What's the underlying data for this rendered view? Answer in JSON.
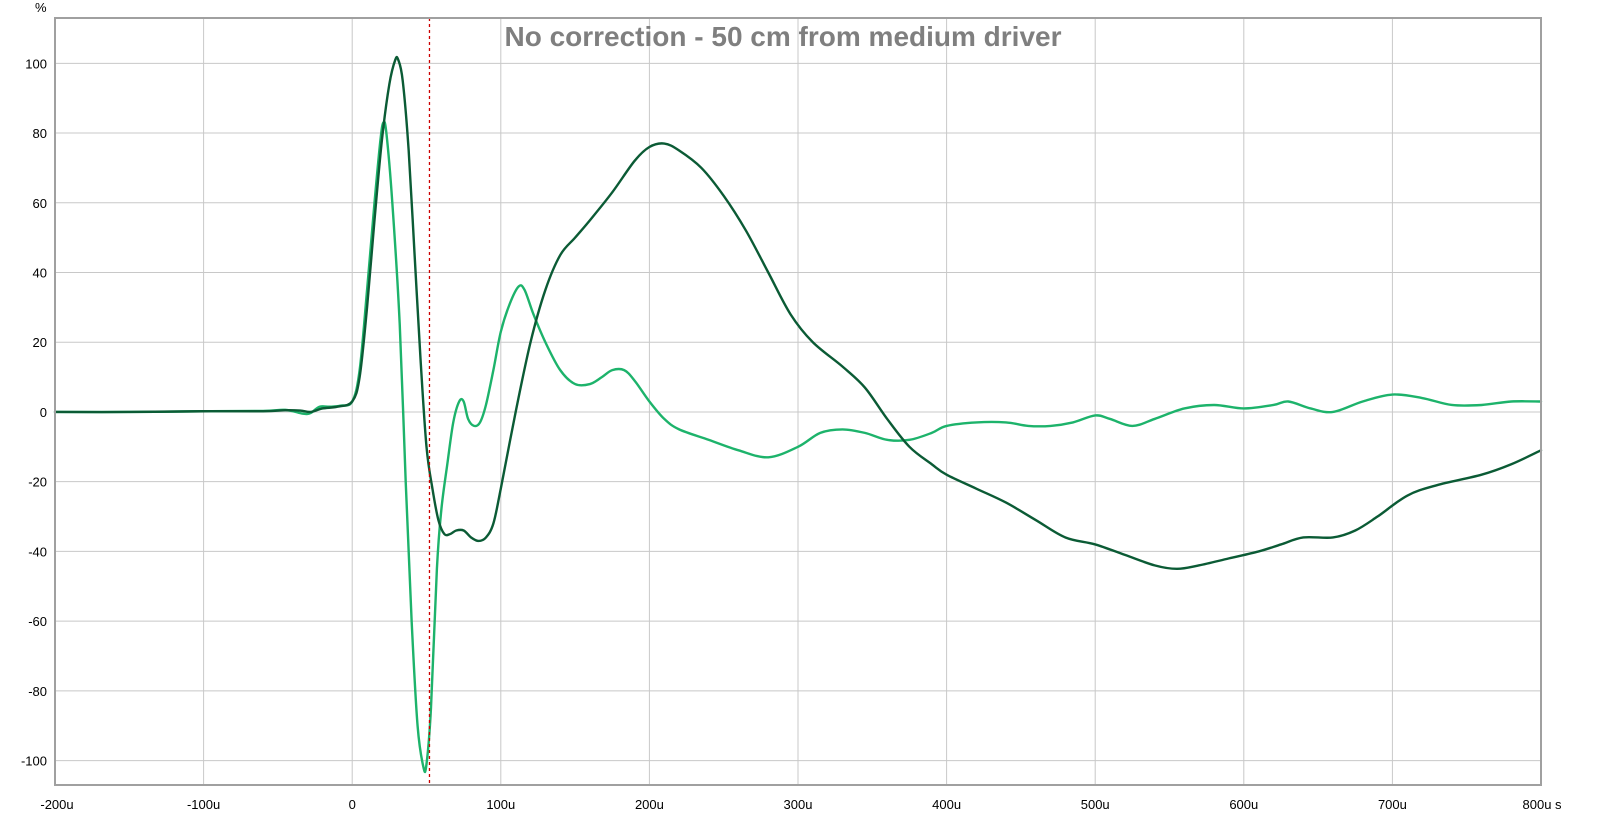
{
  "chart_data": {
    "type": "line",
    "title": "No correction - 50 cm from medium driver",
    "ylabel": "%",
    "xlabel": "",
    "x_unit_label": "s",
    "xlim": [
      -200,
      800
    ],
    "ylim": [
      -107,
      113
    ],
    "x_ticks": [
      -200,
      -100,
      0,
      100,
      200,
      300,
      400,
      500,
      600,
      700,
      800
    ],
    "x_tick_labels": [
      "-200u",
      "-100u",
      "0",
      "100u",
      "200u",
      "300u",
      "400u",
      "500u",
      "600u",
      "700u",
      "800u"
    ],
    "y_ticks": [
      100,
      80,
      60,
      40,
      20,
      0,
      -20,
      -40,
      -60,
      -80,
      -100
    ],
    "y_tick_labels": [
      "100",
      "80",
      "60",
      "40",
      "20",
      "0",
      "-20",
      "-40",
      "-60",
      "-80",
      "-100"
    ],
    "grid": true,
    "cursor_x": 52,
    "cursor_color": "#cc0000",
    "grid_color": "#c8c8c8",
    "frame_color": "#a0a0a0",
    "series": [
      {
        "color": "#1db36b",
        "points": [
          [
            -200,
            0
          ],
          [
            -150,
            0
          ],
          [
            -100,
            0.2
          ],
          [
            -60,
            0.3
          ],
          [
            -45,
            0.6
          ],
          [
            -33,
            -0.5
          ],
          [
            -28,
            -0.3
          ],
          [
            -22,
            1.5
          ],
          [
            -15,
            1.5
          ],
          [
            -8,
            1.8
          ],
          [
            0,
            3
          ],
          [
            5,
            12
          ],
          [
            10,
            35
          ],
          [
            15,
            60
          ],
          [
            19,
            78
          ],
          [
            21,
            83
          ],
          [
            23,
            80
          ],
          [
            27,
            60
          ],
          [
            32,
            25
          ],
          [
            36,
            -20
          ],
          [
            40,
            -60
          ],
          [
            44,
            -90
          ],
          [
            48,
            -102
          ],
          [
            50,
            -101
          ],
          [
            53,
            -85
          ],
          [
            57,
            -45
          ],
          [
            60,
            -28
          ],
          [
            64,
            -15
          ],
          [
            68,
            -3
          ],
          [
            72,
            3
          ],
          [
            75,
            3
          ],
          [
            78,
            -2
          ],
          [
            82,
            -4
          ],
          [
            86,
            -3
          ],
          [
            90,
            2
          ],
          [
            95,
            12
          ],
          [
            100,
            23
          ],
          [
            106,
            31
          ],
          [
            112,
            36
          ],
          [
            116,
            35
          ],
          [
            122,
            28
          ],
          [
            130,
            20
          ],
          [
            140,
            12
          ],
          [
            150,
            8
          ],
          [
            160,
            8
          ],
          [
            168,
            10
          ],
          [
            175,
            12
          ],
          [
            183,
            12
          ],
          [
            190,
            9
          ],
          [
            200,
            3
          ],
          [
            210,
            -2
          ],
          [
            220,
            -5
          ],
          [
            240,
            -8
          ],
          [
            260,
            -11
          ],
          [
            280,
            -13
          ],
          [
            300,
            -10
          ],
          [
            315,
            -6
          ],
          [
            330,
            -5
          ],
          [
            345,
            -6
          ],
          [
            360,
            -8
          ],
          [
            375,
            -8
          ],
          [
            390,
            -6
          ],
          [
            400,
            -4
          ],
          [
            420,
            -3
          ],
          [
            440,
            -3
          ],
          [
            455,
            -4
          ],
          [
            470,
            -4
          ],
          [
            485,
            -3
          ],
          [
            500,
            -1
          ],
          [
            510,
            -2
          ],
          [
            525,
            -4
          ],
          [
            540,
            -2
          ],
          [
            560,
            1
          ],
          [
            580,
            2
          ],
          [
            600,
            1
          ],
          [
            620,
            2
          ],
          [
            630,
            3
          ],
          [
            645,
            1
          ],
          [
            660,
            0
          ],
          [
            680,
            3
          ],
          [
            700,
            5
          ],
          [
            720,
            4
          ],
          [
            740,
            2
          ],
          [
            760,
            2
          ],
          [
            780,
            3
          ],
          [
            800,
            3
          ]
        ]
      },
      {
        "color": "#0b5b35",
        "points": [
          [
            -200,
            0
          ],
          [
            -150,
            0
          ],
          [
            -100,
            0.2
          ],
          [
            -60,
            0.2
          ],
          [
            -45,
            0.5
          ],
          [
            -35,
            0.4
          ],
          [
            -28,
            0
          ],
          [
            -20,
            1
          ],
          [
            -10,
            1.5
          ],
          [
            0,
            3
          ],
          [
            5,
            10
          ],
          [
            10,
            30
          ],
          [
            15,
            55
          ],
          [
            20,
            78
          ],
          [
            25,
            94
          ],
          [
            29,
            101
          ],
          [
            31,
            101
          ],
          [
            34,
            95
          ],
          [
            38,
            75
          ],
          [
            42,
            45
          ],
          [
            46,
            15
          ],
          [
            50,
            -10
          ],
          [
            54,
            -22
          ],
          [
            58,
            -31
          ],
          [
            62,
            -35
          ],
          [
            66,
            -35
          ],
          [
            70,
            -34
          ],
          [
            75,
            -34
          ],
          [
            80,
            -36
          ],
          [
            85,
            -37
          ],
          [
            90,
            -36
          ],
          [
            95,
            -32
          ],
          [
            100,
            -22
          ],
          [
            110,
            0
          ],
          [
            120,
            20
          ],
          [
            130,
            35
          ],
          [
            140,
            45
          ],
          [
            150,
            50
          ],
          [
            160,
            55
          ],
          [
            175,
            63
          ],
          [
            190,
            72
          ],
          [
            200,
            76
          ],
          [
            210,
            77
          ],
          [
            220,
            75
          ],
          [
            235,
            70
          ],
          [
            250,
            62
          ],
          [
            265,
            52
          ],
          [
            280,
            40
          ],
          [
            295,
            28
          ],
          [
            310,
            20
          ],
          [
            330,
            13
          ],
          [
            345,
            7
          ],
          [
            360,
            -2
          ],
          [
            375,
            -10
          ],
          [
            390,
            -15
          ],
          [
            400,
            -18
          ],
          [
            420,
            -22
          ],
          [
            440,
            -26
          ],
          [
            460,
            -31
          ],
          [
            480,
            -36
          ],
          [
            500,
            -38
          ],
          [
            520,
            -41
          ],
          [
            540,
            -44
          ],
          [
            555,
            -45
          ],
          [
            570,
            -44
          ],
          [
            590,
            -42
          ],
          [
            610,
            -40
          ],
          [
            625,
            -38
          ],
          [
            640,
            -36
          ],
          [
            660,
            -36
          ],
          [
            675,
            -34
          ],
          [
            690,
            -30
          ],
          [
            710,
            -24
          ],
          [
            730,
            -21
          ],
          [
            760,
            -18
          ],
          [
            780,
            -15
          ],
          [
            800,
            -11
          ]
        ]
      }
    ]
  }
}
